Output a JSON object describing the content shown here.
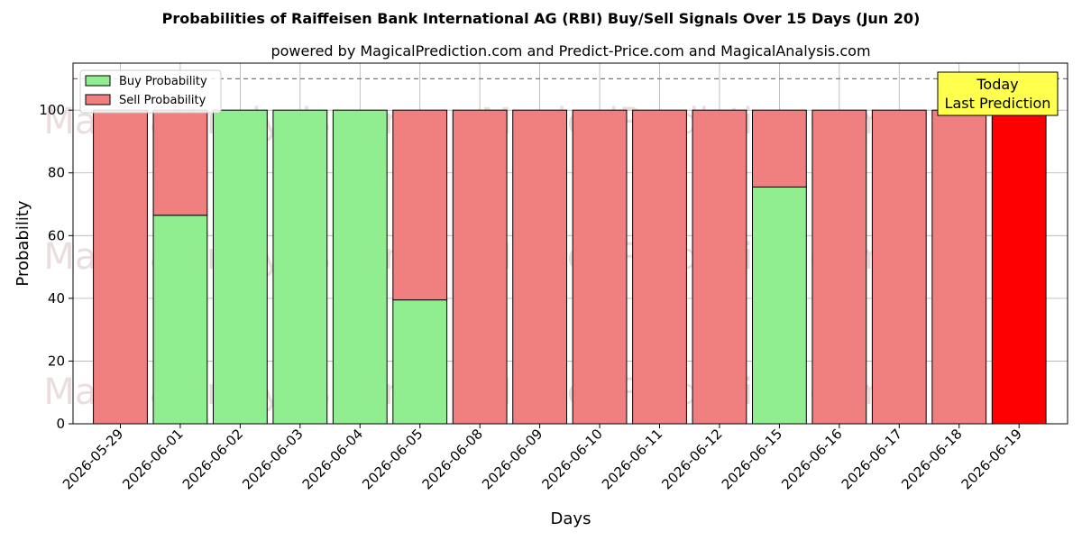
{
  "chart_data": {
    "type": "bar",
    "title": "Probabilities of Raiffeisen Bank International AG (RBI) Buy/Sell Signals Over 15 Days (Jun 20)",
    "subtitle": "powered by MagicalPrediction.com and Predict-Price.com and MagicalAnalysis.com",
    "xlabel": "Days",
    "ylabel": "Probability",
    "ylim": [
      0,
      115
    ],
    "yticks": [
      0,
      20,
      40,
      60,
      80,
      100
    ],
    "grid": true,
    "stacked": true,
    "categories": [
      "2026-05-29",
      "2026-06-01",
      "2026-06-02",
      "2026-06-03",
      "2026-06-04",
      "2026-06-05",
      "2026-06-08",
      "2026-06-09",
      "2026-06-10",
      "2026-06-11",
      "2026-06-12",
      "2026-06-15",
      "2026-06-16",
      "2026-06-17",
      "2026-06-18",
      "2026-06-19"
    ],
    "series": [
      {
        "name": "Buy Probability",
        "color": "#90ee90",
        "values": [
          0,
          66.5,
          100,
          100,
          100,
          39.5,
          0,
          0,
          0,
          0,
          0,
          75.5,
          0,
          0,
          0,
          0
        ]
      },
      {
        "name": "Sell Probability",
        "color": "#f08080",
        "values": [
          100,
          33.5,
          0,
          0,
          0,
          60.5,
          100,
          100,
          100,
          100,
          100,
          24.5,
          100,
          100,
          100,
          100
        ]
      }
    ],
    "highlight": {
      "index": 15,
      "color": "#ff0000"
    },
    "reference_line": {
      "y": 110,
      "style": "dashed"
    },
    "legend_position": "top-left",
    "annotation": {
      "lines": [
        "Today",
        "Last Prediction"
      ],
      "background": "#ffff4d",
      "position": "top-right"
    },
    "watermarks": [
      "MagicalAnalysis.com",
      "MagicalPrediction.com"
    ]
  }
}
